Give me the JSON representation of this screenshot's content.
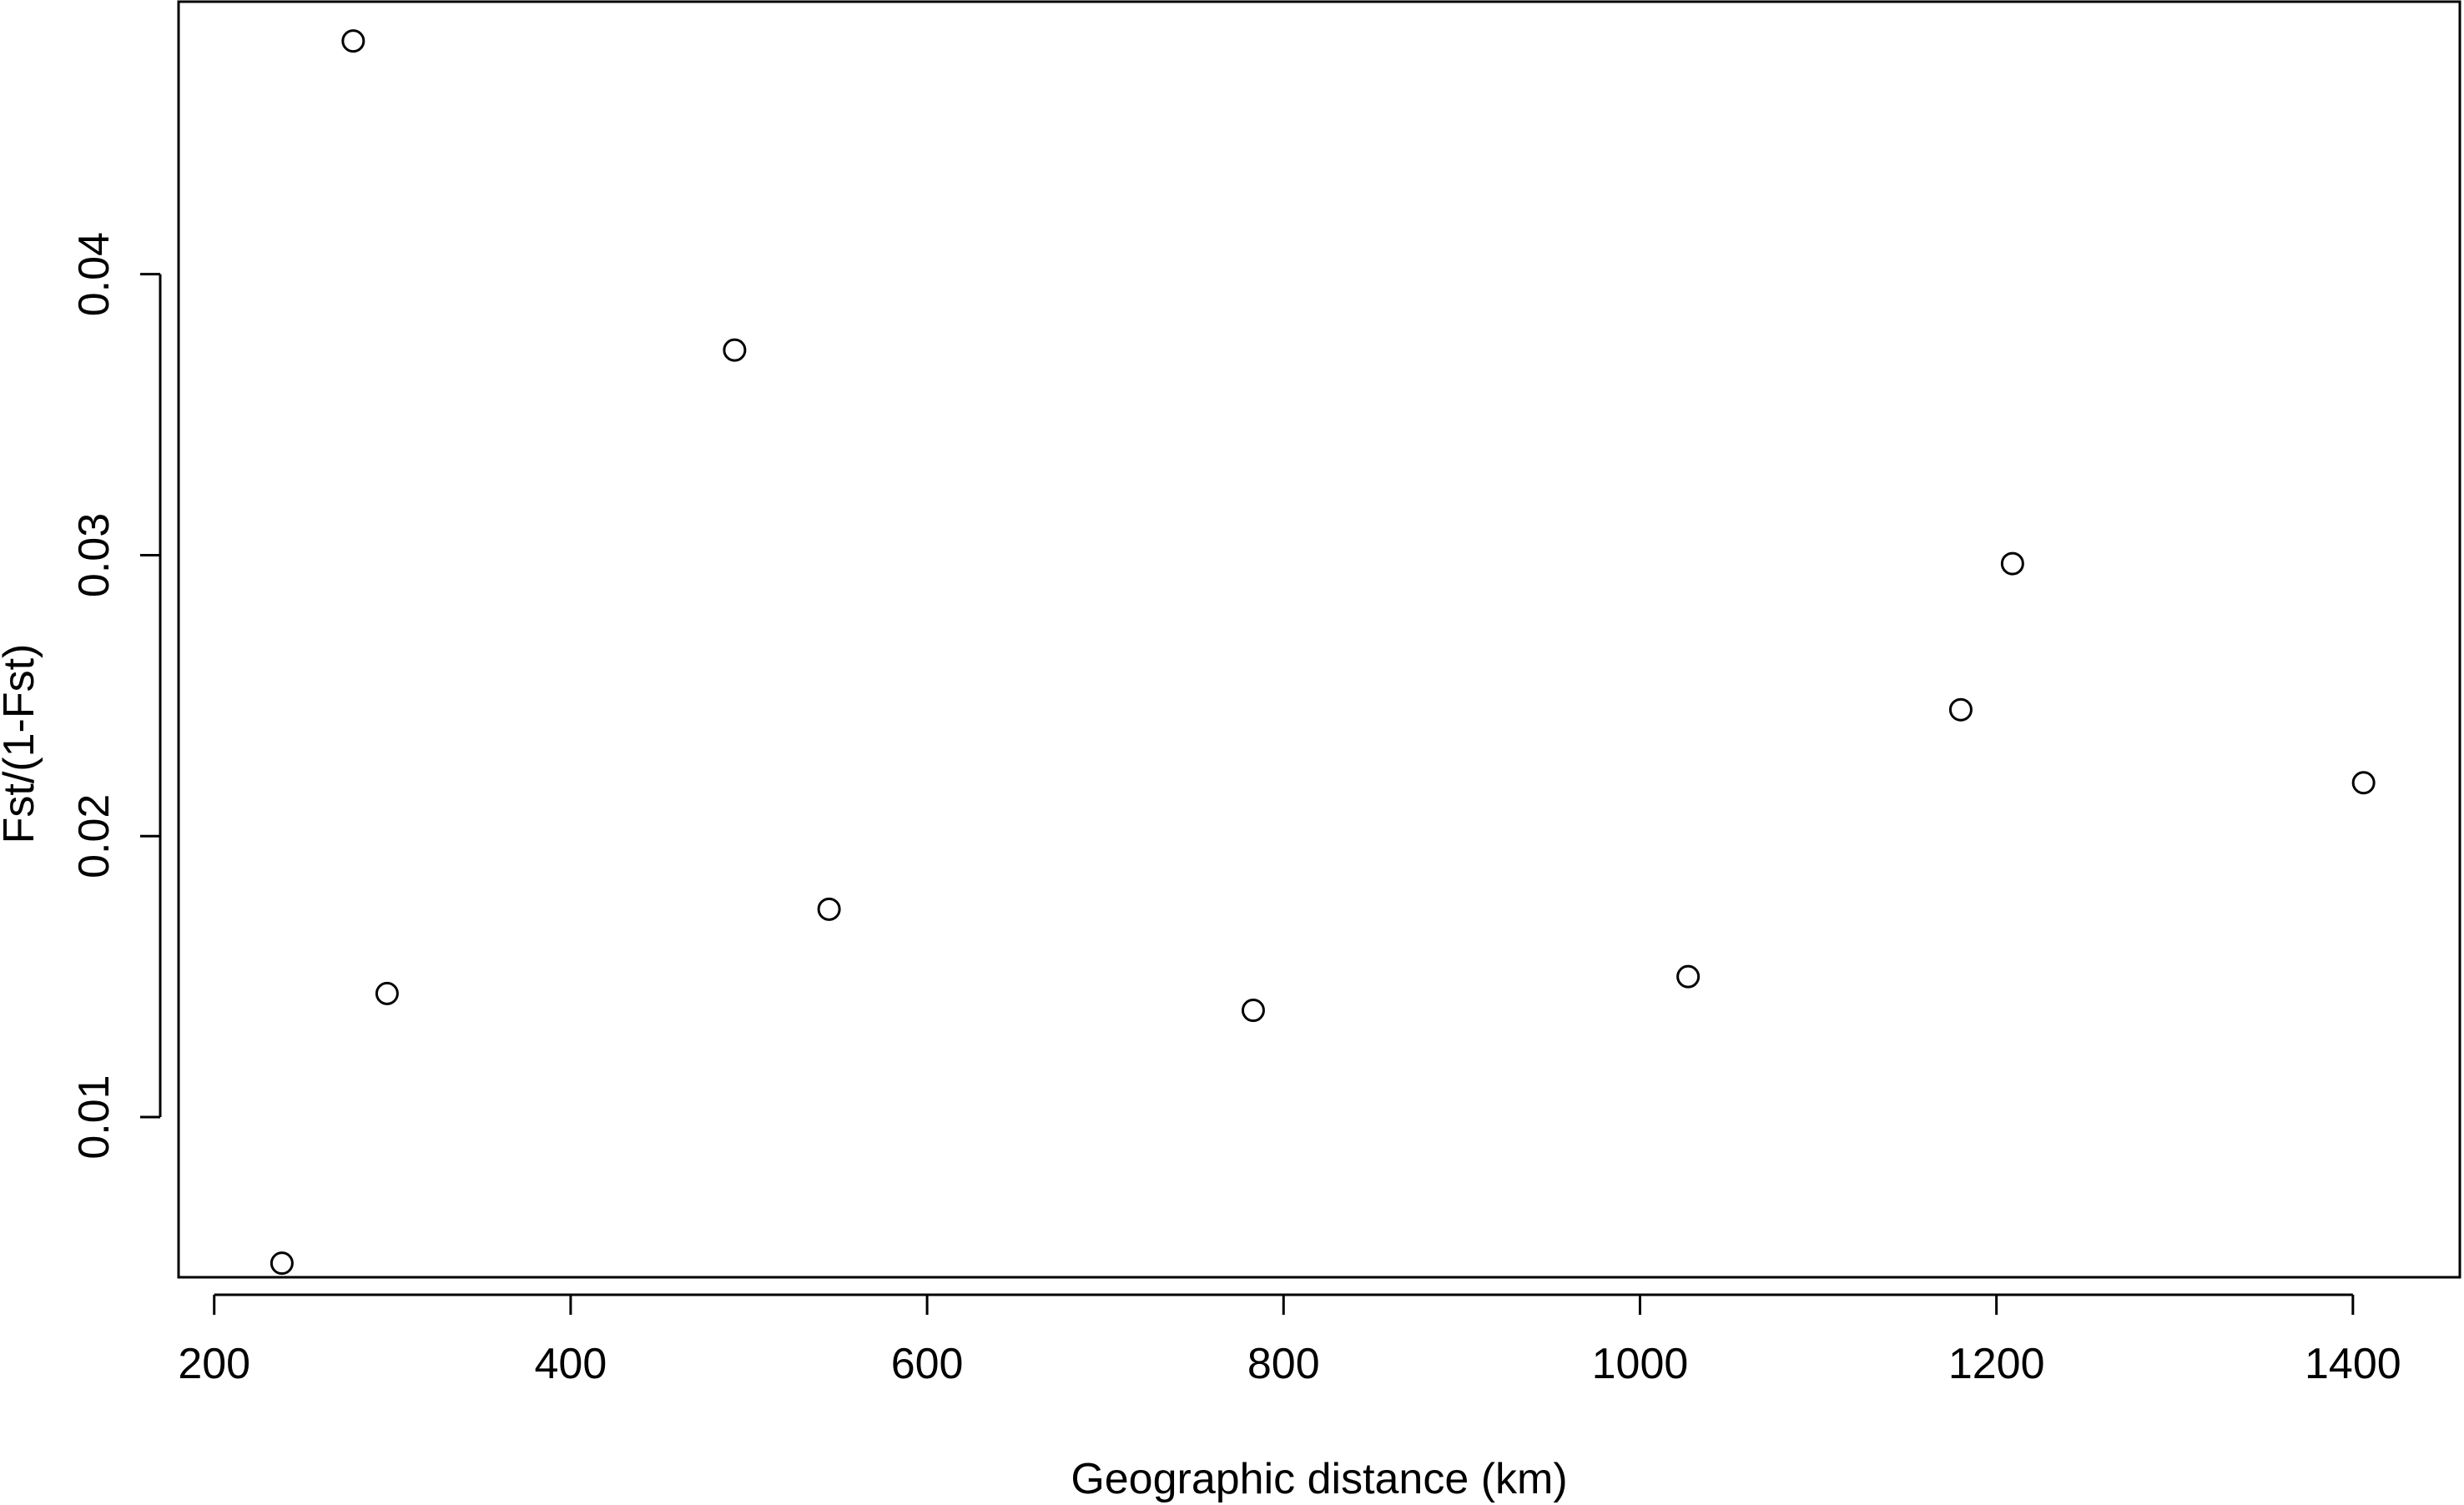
{
  "chart_data": {
    "type": "scatter",
    "title": "",
    "xlabel": "Geographic distance (km)",
    "ylabel": "Fst/(1-Fst)",
    "xlim": [
      180,
      1460
    ],
    "ylim": [
      0.0043,
      0.0497
    ],
    "x_ticks": [
      200,
      400,
      600,
      800,
      1000,
      1200,
      1400
    ],
    "x_tick_labels": [
      "200",
      "400",
      "600",
      "800",
      "1000",
      "1200",
      "1400"
    ],
    "y_ticks": [
      0.01,
      0.02,
      0.03,
      0.04
    ],
    "y_tick_labels": [
      "0.01",
      "0.02",
      "0.03",
      "0.04"
    ],
    "grid": false,
    "legend": "none",
    "marker": "open-circle",
    "color": "#000000",
    "x": [
      238,
      278,
      297,
      492,
      545,
      783,
      1027,
      1180,
      1209,
      1406
    ],
    "y": [
      0.0048,
      0.0483,
      0.0144,
      0.0373,
      0.0174,
      0.0138,
      0.015,
      0.0245,
      0.0297,
      0.0219
    ]
  }
}
